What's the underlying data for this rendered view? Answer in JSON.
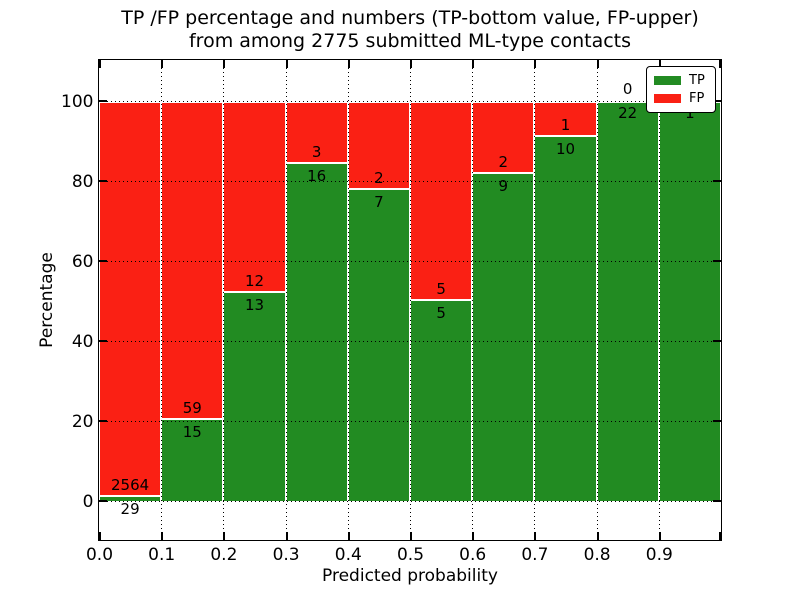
{
  "title": {
    "line1": "TP /FP percentage and numbers (TP-bottom value, FP-upper)",
    "line2": "from among 2775 submitted ML-type contacts"
  },
  "chart_data": {
    "type": "bar",
    "subtype": "stacked-percentage",
    "title": "TP /FP percentage and numbers (TP-bottom value, FP-upper) from among 2775 submitted ML-type contacts",
    "xlabel": "Predicted probability",
    "ylabel": "Percentage",
    "total_contacts": 2775,
    "xlim": [
      0.0,
      1.0
    ],
    "ylim": [
      -10,
      110
    ],
    "bin_width": 0.1,
    "x_tick_labels": [
      "0.0",
      "0.1",
      "0.2",
      "0.3",
      "0.4",
      "0.5",
      "0.6",
      "0.7",
      "0.8",
      "0.9"
    ],
    "y_tick_values": [
      0,
      20,
      40,
      60,
      80,
      100
    ],
    "y_tick_labels": [
      "0",
      "20",
      "40",
      "60",
      "80",
      "100"
    ],
    "grid": "dotted",
    "legend_position": "upper right",
    "series": [
      {
        "name": "TP",
        "color": "#228b22",
        "counts": [
          29,
          15,
          13,
          16,
          7,
          5,
          9,
          10,
          22,
          1
        ]
      },
      {
        "name": "FP",
        "color": "#fa2014",
        "counts": [
          2564,
          59,
          12,
          3,
          2,
          5,
          2,
          1,
          0,
          0
        ]
      }
    ],
    "tp_percentages": [
      1.1,
      20.3,
      52.0,
      84.2,
      77.8,
      50.0,
      81.8,
      90.9,
      100.0,
      100.0
    ]
  },
  "colors": {
    "tp_green": "#228b22",
    "fp_red": "#fa2014",
    "background": "#ffffff",
    "axis": "#000000"
  }
}
